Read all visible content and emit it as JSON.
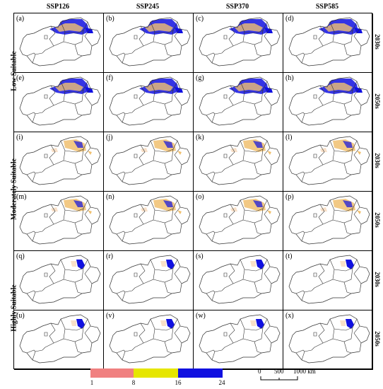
{
  "columns": [
    "SSP126",
    "SSP245",
    "SSP370",
    "SSP585"
  ],
  "rows": [
    {
      "group": "Low Suitable",
      "decade": "2030s",
      "labels": [
        "(a)",
        "(b)",
        "(c)",
        "(d)"
      ]
    },
    {
      "group": "Low Suitable",
      "decade": "2050s",
      "labels": [
        "(e)",
        "(f)",
        "(g)",
        "(h)"
      ]
    },
    {
      "group": "Moderately Suitable",
      "decade": "2030s",
      "labels": [
        "(i)",
        "(j)",
        "(k)",
        "(l)"
      ]
    },
    {
      "group": "Moderately Suitable",
      "decade": "2050s",
      "labels": [
        "(m)",
        "(n)",
        "(o)",
        "(p)"
      ]
    },
    {
      "group": "Highly Suitable",
      "decade": "2030s",
      "labels": [
        "(q)",
        "(r)",
        "(s)",
        "(t)"
      ]
    },
    {
      "group": "Highly Suitable",
      "decade": "2050s",
      "labels": [
        "(u)",
        "(v)",
        "(w)",
        "(x)"
      ]
    }
  ],
  "groups": [
    "Low Suitable",
    "Moderately Suitable",
    "Highly Suitable"
  ],
  "legend": {
    "ticks": [
      "1",
      "8",
      "16",
      "24"
    ],
    "colors": [
      "#f08080",
      "#e6e600",
      "#1010e0"
    ]
  },
  "scale_bar": {
    "labels": [
      "0",
      "500",
      "1000 km"
    ]
  },
  "colors": {
    "low_suit": "#1010e0",
    "mid_suit": "#f0c070",
    "pale": "#f8e0c8"
  }
}
